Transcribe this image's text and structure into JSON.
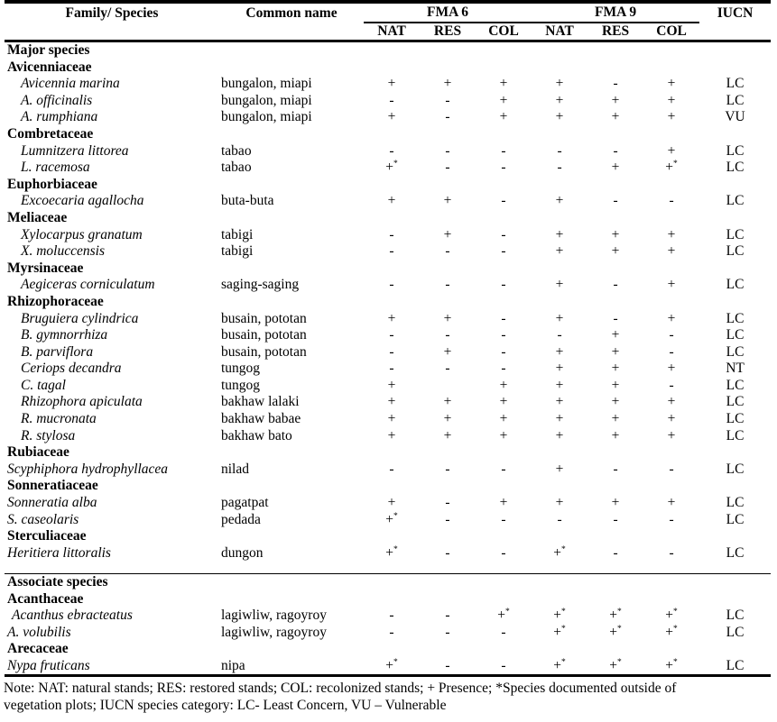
{
  "table": {
    "headers": {
      "family_species": "Family/ Species",
      "common_name": "Common name",
      "fma6": "FMA 6",
      "fma9": "FMA 9",
      "iucn": "IUCN",
      "sub": [
        "NAT",
        "RES",
        "COL",
        "NAT",
        "RES",
        "COL"
      ]
    },
    "rows": [
      {
        "t": "sec",
        "label": "Major species"
      },
      {
        "t": "fam",
        "label": "Avicenniaceae"
      },
      {
        "t": "sp",
        "name": "Avicennia marina",
        "common": "bungalon, miapi",
        "cells": [
          "+",
          "+",
          "+",
          "+",
          "-",
          "+"
        ],
        "iucn": "LC",
        "ind": 2
      },
      {
        "t": "sp",
        "name": "A. officinalis",
        "common": "bungalon, miapi",
        "cells": [
          "-",
          "-",
          "+",
          "+",
          "+",
          "+"
        ],
        "iucn": "LC",
        "ind": 2
      },
      {
        "t": "sp",
        "name": "A. rumphiana",
        "common": "bungalon, miapi",
        "cells": [
          "+",
          "-",
          "+",
          "+",
          "+",
          "+"
        ],
        "iucn": "VU",
        "ind": 2
      },
      {
        "t": "fam",
        "label": "Combretaceae"
      },
      {
        "t": "sp",
        "name": "Lumnitzera littorea",
        "common": "tabao",
        "cells": [
          "-",
          "-",
          "-",
          "-",
          "-",
          "+"
        ],
        "iucn": "LC",
        "ind": 2
      },
      {
        "t": "sp",
        "name": "L. racemosa",
        "common": "tabao",
        "cells": [
          "+*",
          "-",
          "-",
          "-",
          "+",
          "+*"
        ],
        "iucn": "LC",
        "ind": 2
      },
      {
        "t": "fam",
        "label": "Euphorbiaceae"
      },
      {
        "t": "sp",
        "name": "Excoecaria agallocha",
        "common": "buta-buta",
        "cells": [
          "+",
          "+",
          "-",
          "+",
          "-",
          "-"
        ],
        "iucn": "LC",
        "ind": 2
      },
      {
        "t": "fam",
        "label": "Meliaceae"
      },
      {
        "t": "sp",
        "name": "Xylocarpus granatum",
        "common": "tabigi",
        "cells": [
          "-",
          "+",
          "-",
          "+",
          "+",
          "+"
        ],
        "iucn": "LC",
        "ind": 2
      },
      {
        "t": "sp",
        "name": "X. moluccensis",
        "common": "tabigi",
        "cells": [
          "-",
          "-",
          "-",
          "+",
          "+",
          "+"
        ],
        "iucn": "LC",
        "ind": 2
      },
      {
        "t": "fam",
        "label": "Myrsinaceae"
      },
      {
        "t": "sp",
        "name": "Aegiceras corniculatum",
        "common": "saging-saging",
        "cells": [
          "-",
          "-",
          "-",
          "+",
          "-",
          "+"
        ],
        "iucn": "LC",
        "ind": 2
      },
      {
        "t": "fam",
        "label": "Rhizophoraceae"
      },
      {
        "t": "sp",
        "name": "Bruguiera cylindrica",
        "common": "busain, pototan",
        "cells": [
          "+",
          "+",
          "-",
          "+",
          "-",
          "+"
        ],
        "iucn": "LC",
        "ind": 2
      },
      {
        "t": "sp",
        "name": "B. gymnorrhiza",
        "common": "busain, pototan",
        "cells": [
          "-",
          "-",
          "-",
          "-",
          "+",
          "-"
        ],
        "iucn": "LC",
        "ind": 2
      },
      {
        "t": "sp",
        "name": "B. parviflora",
        "common": "busain, pototan",
        "cells": [
          "-",
          "+",
          "-",
          "+",
          "+",
          "-"
        ],
        "iucn": "LC",
        "ind": 2
      },
      {
        "t": "sp",
        "name": "Ceriops decandra",
        "common": "tungog",
        "cells": [
          "-",
          "-",
          "-",
          "+",
          "+",
          "+"
        ],
        "iucn": "NT",
        "ind": 2
      },
      {
        "t": "sp",
        "name": "C. tagal",
        "common": "tungog",
        "cells": [
          "+",
          "",
          "+",
          "+",
          "+",
          "-"
        ],
        "iucn": "LC",
        "ind": 2
      },
      {
        "t": "sp",
        "name": "Rhizophora apiculata",
        "common": "bakhaw lalaki",
        "cells": [
          "+",
          "+",
          "+",
          "+",
          "+",
          "+"
        ],
        "iucn": "LC",
        "ind": 2
      },
      {
        "t": "sp",
        "name": "R. mucronata",
        "common": "bakhaw babae",
        "cells": [
          "+",
          "+",
          "+",
          "+",
          "+",
          "+"
        ],
        "iucn": "LC",
        "ind": 2
      },
      {
        "t": "sp",
        "name": "R. stylosa",
        "common": "bakhaw bato",
        "cells": [
          "+",
          "+",
          "+",
          "+",
          "+",
          "+"
        ],
        "iucn": "LC",
        "ind": 2
      },
      {
        "t": "fam",
        "label": "Rubiaceae"
      },
      {
        "t": "sp",
        "name": "Scyphiphora hydrophyllacea",
        "common": "nilad",
        "cells": [
          "-",
          "-",
          "-",
          "+",
          "-",
          "-"
        ],
        "iucn": "LC",
        "ind": 0
      },
      {
        "t": "fam",
        "label": "Sonneratiaceae"
      },
      {
        "t": "sp",
        "name": "Sonneratia alba",
        "common": "pagatpat",
        "cells": [
          "+",
          "-",
          "+",
          "+",
          "+",
          "+"
        ],
        "iucn": "LC",
        "ind": 0
      },
      {
        "t": "sp",
        "name": "S. caseolaris",
        "common": "pedada",
        "cells": [
          "+*",
          "-",
          "-",
          "-",
          "-",
          "-"
        ],
        "iucn": "LC",
        "ind": 0
      },
      {
        "t": "fam",
        "label": "Sterculiaceae"
      },
      {
        "t": "sp",
        "name": "Heritiera littoralis",
        "common": "dungon",
        "cells": [
          "+*",
          "-",
          "-",
          "+*",
          "-",
          "-"
        ],
        "iucn": "LC",
        "ind": 0
      },
      {
        "t": "spacer"
      },
      {
        "t": "sec",
        "label": "Associate species"
      },
      {
        "t": "fam",
        "label": "Acanthaceae"
      },
      {
        "t": "sp",
        "name": "Acanthus ebracteatus",
        "common": "lagiwliw, ragoyroy",
        "cells": [
          "-",
          "-",
          "+*",
          "+*",
          "+*",
          "+*"
        ],
        "iucn": "LC",
        "ind": 1
      },
      {
        "t": "sp",
        "name": "A. volubilis",
        "common": "lagiwliw, ragoyroy",
        "cells": [
          "-",
          "-",
          "-",
          "+*",
          "+*",
          "+*"
        ],
        "iucn": "LC",
        "ind": 0
      },
      {
        "t": "fam",
        "label": "Arecaceae"
      },
      {
        "t": "sp",
        "name": "Nypa fruticans",
        "common": "nipa",
        "cells": [
          "+*",
          "-",
          "-",
          "+*",
          "+*",
          "+*"
        ],
        "iucn": "LC",
        "ind": 0
      }
    ]
  },
  "note": {
    "line1": "Note: NAT: natural stands; RES: restored stands; COL: recolonized stands; + Presence; *Species documented outside of",
    "line2": "vegetation plots; IUCN species category: LC- Least Concern, VU – Vulnerable"
  }
}
